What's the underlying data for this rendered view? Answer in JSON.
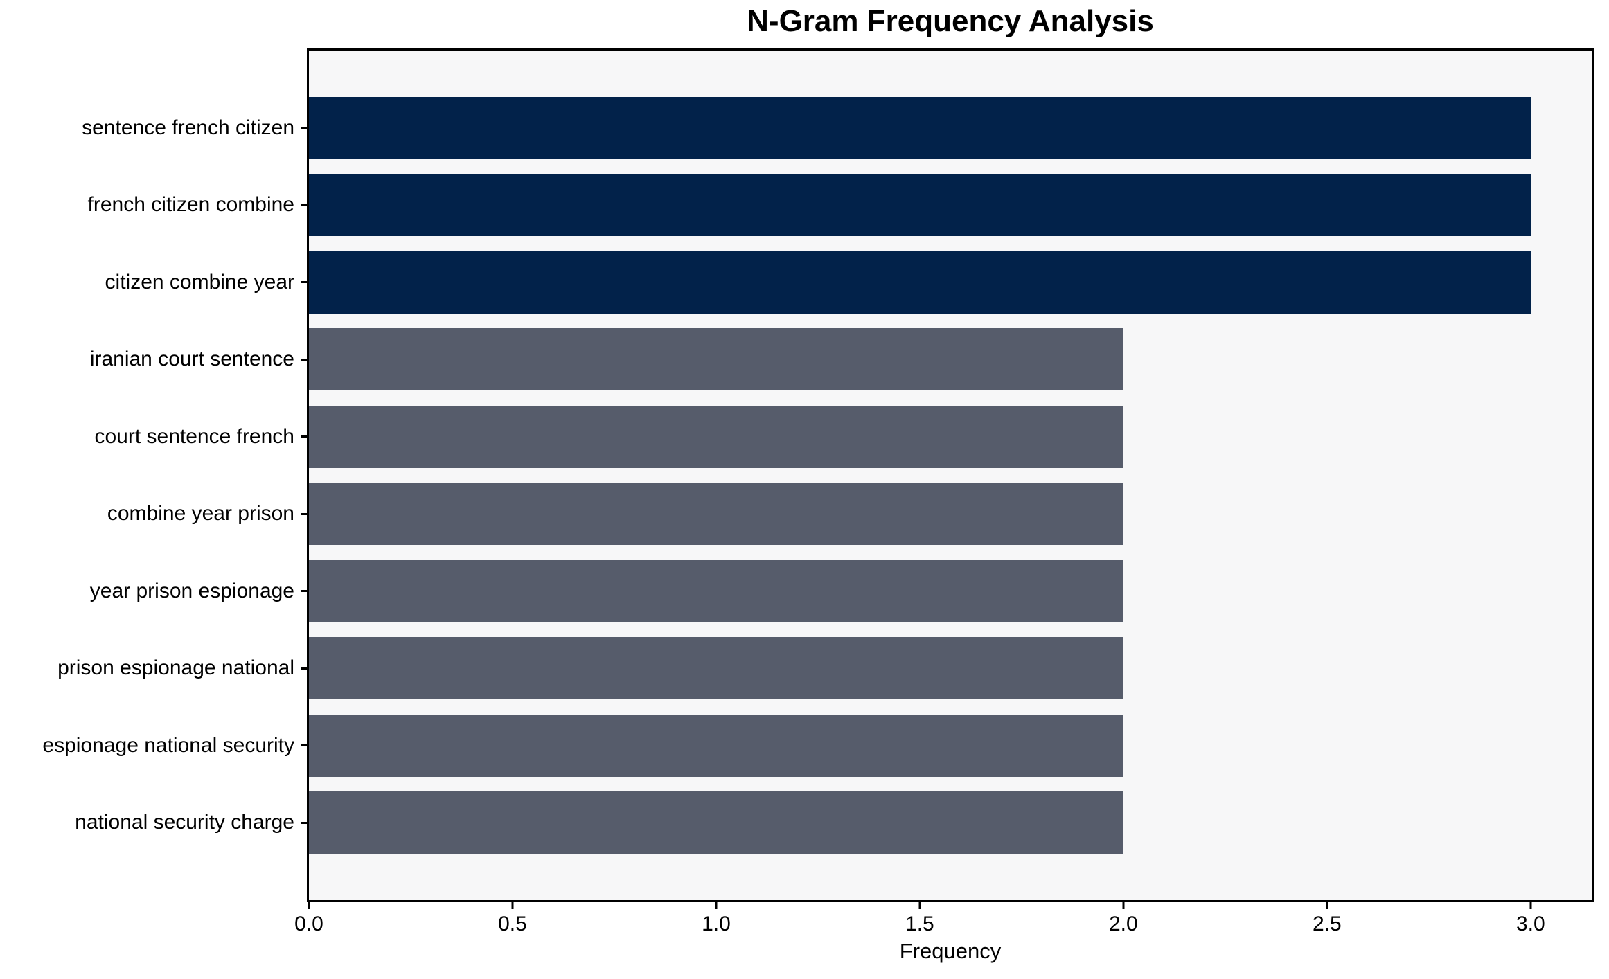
{
  "chart_data": {
    "type": "bar",
    "orientation": "horizontal",
    "title": "N-Gram Frequency Analysis",
    "xlabel": "Frequency",
    "ylabel": "",
    "categories": [
      "sentence french citizen",
      "french citizen combine",
      "citizen combine year",
      "iranian court sentence",
      "court sentence french",
      "combine year prison",
      "year prison espionage",
      "prison espionage national",
      "espionage national security",
      "national security charge"
    ],
    "values": [
      3,
      3,
      3,
      2,
      2,
      2,
      2,
      2,
      2,
      2
    ],
    "bar_colors": [
      "#02224a",
      "#02224a",
      "#02224a",
      "#565c6b",
      "#565c6b",
      "#565c6b",
      "#565c6b",
      "#565c6b",
      "#565c6b",
      "#565c6b"
    ],
    "xlim": [
      0,
      3.15
    ],
    "x_ticks": [
      0.0,
      0.5,
      1.0,
      1.5,
      2.0,
      2.5,
      3.0
    ],
    "x_tick_labels": [
      "0.0",
      "0.5",
      "1.0",
      "1.5",
      "2.0",
      "2.5",
      "3.0"
    ],
    "grid": false,
    "legend": null,
    "colors": {
      "bar_high": "#02224a",
      "bar_low": "#565c6b",
      "plot_background": "#f7f7f8",
      "figure_background": "#ffffff",
      "axis": "#000000"
    }
  }
}
